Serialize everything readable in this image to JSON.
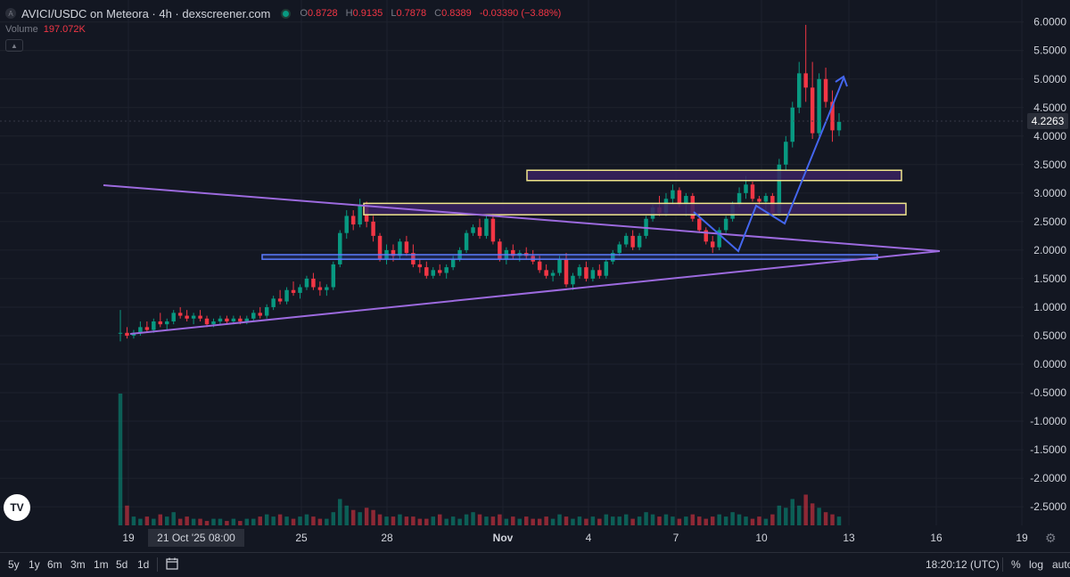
{
  "header": {
    "logo_letter": "A",
    "title": "AVICI/USDC on Meteora · 4h · dexscreener.com",
    "open_label": "O",
    "open": "0.8728",
    "high_label": "H",
    "high": "0.9135",
    "low_label": "L",
    "low": "0.7878",
    "close_label": "C",
    "close": "0.8389",
    "change": "-0.03390 (−3.88%)"
  },
  "volume": {
    "label": "Volume",
    "value": "197.072K"
  },
  "price_axis": {
    "ticks": [
      "6.0000",
      "5.5000",
      "5.0000",
      "4.5000",
      "4.0000",
      "3.5000",
      "3.0000",
      "2.5000",
      "2.0000",
      "1.5000",
      "1.0000",
      "0.5000",
      "0.0000",
      "-0.5000",
      "-1.0000",
      "-1.5000",
      "-2.0000",
      "-2.5000"
    ],
    "current_price": "4.2263"
  },
  "time_axis": {
    "labels": [
      "19",
      "25",
      "28",
      "Nov",
      "4",
      "7",
      "10",
      "13",
      "16",
      "19"
    ],
    "crosshair_label": "21 Oct '25  08:00"
  },
  "toolbar": {
    "timeframes": [
      "5y",
      "1y",
      "6m",
      "3m",
      "1m",
      "5d",
      "1d"
    ],
    "clock": "18:20:12 (UTC)",
    "percent": "%",
    "log": "log",
    "auto": "auto"
  },
  "colors": {
    "background": "#131722",
    "up": "#089981",
    "down": "#f23645",
    "grid": "#1e222d",
    "trendline": "#9c6ade",
    "arrow": "#4466ee",
    "zone_border": "#f0e68c",
    "zone_fill": "#3a2260",
    "support_border": "#5b7cff"
  },
  "chart_data": {
    "type": "candlestick",
    "pair": "AVICI/USDC",
    "timeframe": "4h",
    "ylim": [
      -2.9,
      6.3
    ],
    "dates": [
      "Oct 19",
      "Oct 21",
      "Oct 25",
      "Oct 28",
      "Nov 1",
      "Nov 4",
      "Nov 7",
      "Nov 10",
      "Nov 13",
      "Nov 16",
      "Nov 19"
    ],
    "ohlc": [
      [
        0.55,
        0.95,
        0.4,
        0.55
      ],
      [
        0.55,
        0.65,
        0.45,
        0.5
      ],
      [
        0.5,
        0.6,
        0.45,
        0.55
      ],
      [
        0.55,
        0.75,
        0.5,
        0.65
      ],
      [
        0.65,
        0.75,
        0.55,
        0.6
      ],
      [
        0.6,
        0.8,
        0.55,
        0.75
      ],
      [
        0.75,
        0.9,
        0.65,
        0.7
      ],
      [
        0.7,
        0.8,
        0.6,
        0.75
      ],
      [
        0.75,
        0.95,
        0.7,
        0.9
      ],
      [
        0.9,
        1.0,
        0.8,
        0.85
      ],
      [
        0.85,
        0.95,
        0.75,
        0.8
      ],
      [
        0.8,
        0.9,
        0.7,
        0.85
      ],
      [
        0.85,
        0.95,
        0.75,
        0.8
      ],
      [
        0.8,
        0.85,
        0.65,
        0.7
      ],
      [
        0.7,
        0.8,
        0.65,
        0.75
      ],
      [
        0.75,
        0.85,
        0.7,
        0.8
      ],
      [
        0.8,
        0.85,
        0.7,
        0.75
      ],
      [
        0.75,
        0.85,
        0.7,
        0.8
      ],
      [
        0.8,
        0.85,
        0.7,
        0.75
      ],
      [
        0.75,
        0.85,
        0.7,
        0.8
      ],
      [
        0.8,
        0.95,
        0.75,
        0.9
      ],
      [
        0.9,
        1.0,
        0.8,
        0.85
      ],
      [
        0.85,
        1.05,
        0.8,
        1.0
      ],
      [
        1.0,
        1.2,
        0.95,
        1.15
      ],
      [
        1.15,
        1.3,
        1.05,
        1.1
      ],
      [
        1.1,
        1.35,
        1.05,
        1.3
      ],
      [
        1.3,
        1.45,
        1.2,
        1.25
      ],
      [
        1.25,
        1.4,
        1.15,
        1.35
      ],
      [
        1.35,
        1.55,
        1.3,
        1.5
      ],
      [
        1.5,
        1.6,
        1.3,
        1.35
      ],
      [
        1.35,
        1.45,
        1.2,
        1.3
      ],
      [
        1.3,
        1.4,
        1.2,
        1.35
      ],
      [
        1.35,
        1.8,
        1.3,
        1.75
      ],
      [
        1.75,
        2.35,
        1.7,
        2.3
      ],
      [
        2.3,
        2.7,
        2.2,
        2.6
      ],
      [
        2.6,
        2.7,
        2.35,
        2.45
      ],
      [
        2.45,
        2.9,
        2.4,
        2.8
      ],
      [
        2.8,
        2.85,
        2.4,
        2.5
      ],
      [
        2.5,
        2.6,
        2.15,
        2.25
      ],
      [
        2.25,
        2.3,
        1.8,
        1.85
      ],
      [
        1.85,
        2.1,
        1.75,
        2.0
      ],
      [
        2.0,
        2.1,
        1.8,
        1.9
      ],
      [
        1.9,
        2.2,
        1.85,
        2.15
      ],
      [
        2.15,
        2.25,
        1.9,
        1.95
      ],
      [
        1.95,
        2.1,
        1.7,
        1.75
      ],
      [
        1.75,
        1.85,
        1.6,
        1.7
      ],
      [
        1.7,
        1.8,
        1.5,
        1.55
      ],
      [
        1.55,
        1.7,
        1.5,
        1.65
      ],
      [
        1.65,
        1.75,
        1.55,
        1.6
      ],
      [
        1.6,
        1.75,
        1.5,
        1.7
      ],
      [
        1.7,
        1.9,
        1.65,
        1.85
      ],
      [
        1.85,
        2.05,
        1.8,
        2.0
      ],
      [
        2.0,
        2.35,
        1.95,
        2.3
      ],
      [
        2.3,
        2.45,
        2.25,
        2.4
      ],
      [
        2.4,
        2.55,
        2.2,
        2.25
      ],
      [
        2.25,
        2.6,
        2.2,
        2.55
      ],
      [
        2.55,
        2.65,
        2.1,
        2.15
      ],
      [
        2.15,
        2.2,
        1.8,
        1.85
      ],
      [
        1.85,
        2.05,
        1.75,
        2.0
      ],
      [
        2.0,
        2.1,
        1.85,
        1.9
      ],
      [
        1.9,
        2.0,
        1.8,
        1.95
      ],
      [
        1.95,
        2.05,
        1.85,
        1.9
      ],
      [
        1.9,
        2.0,
        1.75,
        1.8
      ],
      [
        1.8,
        1.9,
        1.6,
        1.65
      ],
      [
        1.65,
        1.75,
        1.5,
        1.55
      ],
      [
        1.55,
        1.65,
        1.45,
        1.6
      ],
      [
        1.6,
        1.9,
        1.55,
        1.85
      ],
      [
        1.85,
        1.95,
        1.35,
        1.4
      ],
      [
        1.4,
        1.6,
        1.3,
        1.55
      ],
      [
        1.55,
        1.75,
        1.5,
        1.7
      ],
      [
        1.7,
        1.8,
        1.45,
        1.5
      ],
      [
        1.5,
        1.7,
        1.45,
        1.65
      ],
      [
        1.65,
        1.75,
        1.5,
        1.55
      ],
      [
        1.55,
        1.85,
        1.5,
        1.8
      ],
      [
        1.8,
        2.0,
        1.75,
        1.95
      ],
      [
        1.95,
        2.15,
        1.9,
        2.1
      ],
      [
        2.1,
        2.3,
        2.05,
        2.25
      ],
      [
        2.25,
        2.35,
        2.0,
        2.05
      ],
      [
        2.05,
        2.3,
        2.0,
        2.25
      ],
      [
        2.25,
        2.6,
        2.2,
        2.55
      ],
      [
        2.55,
        2.8,
        2.5,
        2.75
      ],
      [
        2.75,
        2.95,
        2.6,
        2.65
      ],
      [
        2.65,
        3.0,
        2.6,
        2.9
      ],
      [
        2.9,
        3.15,
        2.8,
        3.05
      ],
      [
        3.05,
        3.1,
        2.75,
        2.8
      ],
      [
        2.8,
        3.0,
        2.6,
        2.95
      ],
      [
        2.95,
        3.0,
        2.5,
        2.55
      ],
      [
        2.55,
        2.65,
        2.3,
        2.35
      ],
      [
        2.35,
        2.4,
        2.1,
        2.15
      ],
      [
        2.15,
        2.25,
        1.95,
        2.05
      ],
      [
        2.05,
        2.4,
        2.0,
        2.35
      ],
      [
        2.35,
        2.6,
        2.3,
        2.55
      ],
      [
        2.55,
        2.85,
        2.5,
        2.8
      ],
      [
        2.8,
        3.1,
        2.75,
        3.0
      ],
      [
        3.0,
        3.3,
        2.9,
        3.15
      ],
      [
        3.15,
        3.2,
        2.85,
        2.9
      ],
      [
        2.9,
        2.95,
        2.75,
        2.85
      ],
      [
        2.85,
        3.0,
        2.7,
        2.95
      ],
      [
        2.95,
        3.0,
        2.6,
        2.65
      ],
      [
        2.65,
        3.6,
        2.6,
        3.5
      ],
      [
        3.5,
        4.0,
        3.4,
        3.9
      ],
      [
        3.9,
        4.6,
        3.8,
        4.5
      ],
      [
        4.5,
        5.3,
        4.4,
        5.1
      ],
      [
        5.1,
        5.95,
        4.6,
        4.85
      ],
      [
        4.85,
        5.3,
        3.95,
        4.05
      ],
      [
        4.05,
        5.1,
        4.0,
        5.0
      ],
      [
        5.0,
        5.2,
        4.5,
        4.6
      ],
      [
        4.6,
        4.8,
        3.9,
        4.1
      ],
      [
        4.1,
        4.4,
        4.0,
        4.25
      ]
    ],
    "volumes": [
      60,
      9,
      4,
      3,
      4,
      3,
      5,
      4,
      6,
      3,
      4,
      3,
      3,
      2,
      3,
      3,
      2,
      3,
      2,
      3,
      3,
      4,
      5,
      4,
      5,
      4,
      3,
      4,
      5,
      4,
      3,
      3,
      6,
      12,
      9,
      7,
      6,
      8,
      7,
      5,
      4,
      4,
      5,
      4,
      4,
      3,
      3,
      4,
      5,
      3,
      4,
      3,
      5,
      6,
      5,
      4,
      4,
      5,
      3,
      4,
      3,
      4,
      3,
      3,
      4,
      3,
      5,
      4,
      3,
      4,
      3,
      4,
      3,
      5,
      4,
      4,
      5,
      3,
      4,
      6,
      5,
      4,
      5,
      4,
      3,
      4,
      5,
      4,
      3,
      4,
      5,
      4,
      6,
      5,
      4,
      3,
      4,
      3,
      5,
      9,
      8,
      12,
      9,
      14,
      10,
      8,
      6,
      5,
      4
    ],
    "annotations": [
      {
        "kind": "resistance_zone",
        "from": 2.62,
        "to": 2.82
      },
      {
        "kind": "resistance_zone",
        "from": 3.22,
        "to": 3.4
      },
      {
        "kind": "support_zone",
        "from": 1.84,
        "to": 1.92
      },
      {
        "kind": "descending_trendline"
      },
      {
        "kind": "ascending_trendline"
      },
      {
        "kind": "projection_arrow"
      }
    ]
  }
}
